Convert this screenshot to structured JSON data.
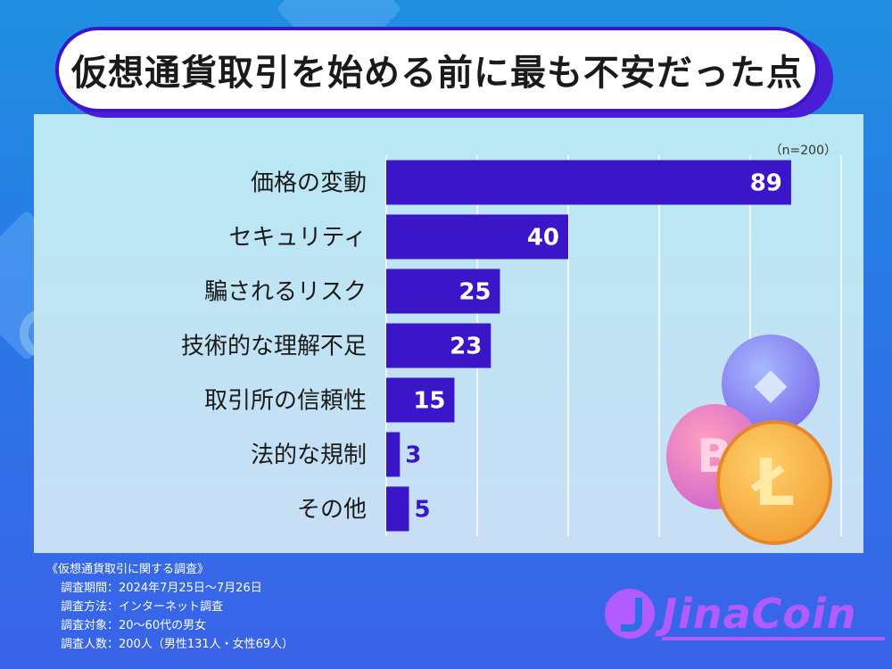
{
  "title": "仮想通貨取引を始める前に最も不安だった点",
  "sample_note": "（n=200）",
  "chart_data": {
    "type": "bar",
    "orientation": "horizontal",
    "categories": [
      "価格の変動",
      "セキュリティ",
      "騙されるリスク",
      "技術的な理解不足",
      "取引所の信頼性",
      "法的な規制",
      "その他"
    ],
    "values": [
      89,
      40,
      25,
      23,
      15,
      3,
      5
    ],
    "xlim": [
      0,
      100
    ],
    "grid": true,
    "bar_color": "#3a16c8"
  },
  "footnote": {
    "heading": "《仮想通貨取引に関する調査》",
    "lines": [
      "調査期間：2024年7月25日〜7月26日",
      "調査方法：インターネット調査",
      "調査対象：20〜60代の男女",
      "調査人数：200人（男性131人・女性69人）"
    ]
  },
  "logo": {
    "text": "JinaCoin"
  },
  "coins": {
    "bitcoin_symbol": "B",
    "litecoin_symbol": "Ł",
    "ethereum_symbol": "◆"
  }
}
